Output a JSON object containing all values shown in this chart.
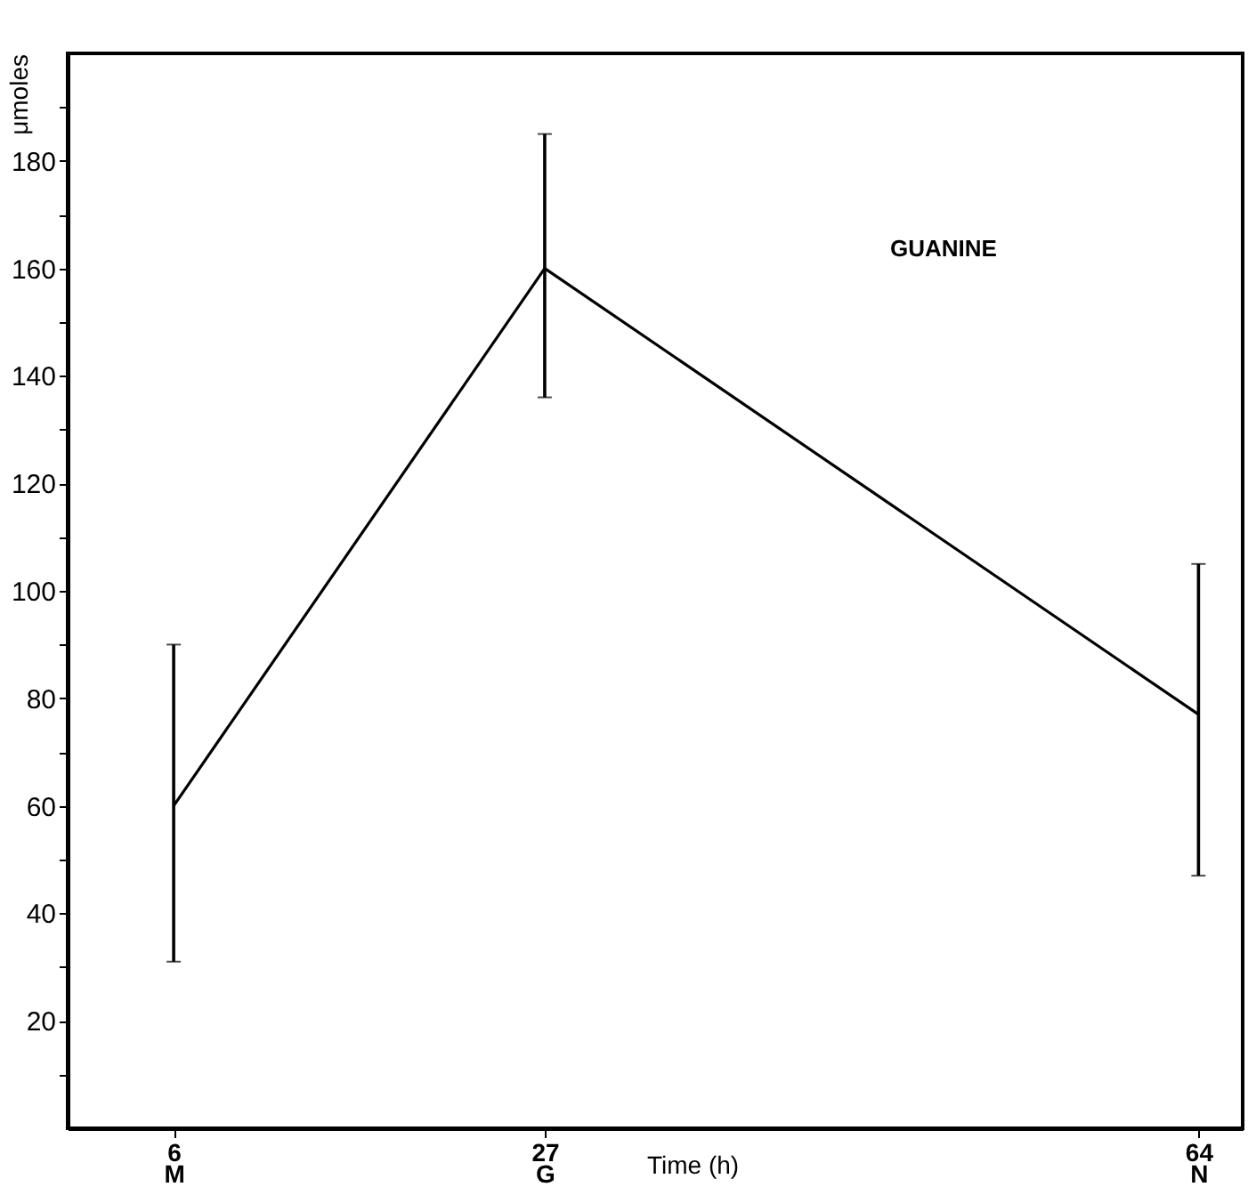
{
  "chart_data": {
    "type": "line",
    "xlabel": "Time (h)",
    "ylabel": "μmoles",
    "annotations": [
      "GUANINE"
    ],
    "x": [
      6,
      27,
      64
    ],
    "series": [
      {
        "color": "#000000",
        "values": [
          60,
          160,
          77
        ],
        "errors": [
          [
            31,
            90
          ],
          [
            136,
            185
          ],
          [
            47,
            105
          ]
        ]
      }
    ],
    "xlim": [
      0,
      66.5
    ],
    "xticks": [
      {
        "value": 6,
        "label": "6\nM"
      },
      {
        "value": 27,
        "label": "27\nG"
      },
      {
        "value": 64,
        "label": "64\nN"
      }
    ],
    "ylim": [
      0,
      200
    ],
    "yticks": [
      {
        "value": 10,
        "label": null
      },
      20,
      {
        "value": 30,
        "label": null
      },
      40,
      {
        "value": 50,
        "label": null
      },
      60,
      {
        "value": 70,
        "label": null
      },
      80,
      {
        "value": 90,
        "label": null
      },
      100,
      {
        "value": 110,
        "label": null
      },
      120,
      {
        "value": 130,
        "label": null
      },
      140,
      {
        "value": 150,
        "label": null
      },
      160,
      {
        "value": 170,
        "label": null
      },
      180,
      {
        "value": 190,
        "label": null
      }
    ],
    "grid": false
  }
}
